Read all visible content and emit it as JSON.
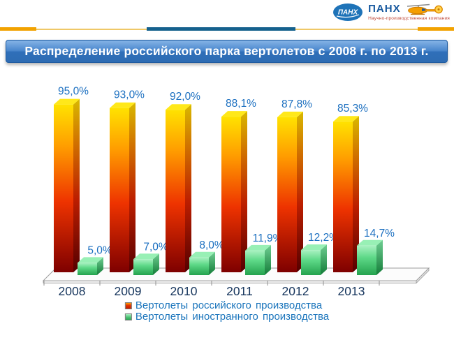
{
  "header": {
    "logo": {
      "badge_text": "ПАНХ",
      "company_name": "ПАНХ",
      "tagline": "Научно-производственная компания",
      "icons": [
        "logo-badge-icon",
        "helicopter-icon"
      ]
    }
  },
  "title_banner": {
    "text": "Распределение российского парка вертолетов с 2008 г. по 2013 г."
  },
  "chart_data": {
    "type": "bar",
    "style": "3d-column-pairs",
    "title": "Распределение российского парка вертолетов с 2008 г. по 2013 г.",
    "categories": [
      "2008",
      "2009",
      "2010",
      "2011",
      "2012",
      "2013"
    ],
    "series": [
      {
        "name": "Вертолеты российского производства",
        "color": "#D93000",
        "values": [
          95.0,
          93.0,
          92.0,
          88.1,
          87.8,
          85.3
        ],
        "labels": [
          "95,0%",
          "93,0%",
          "92,0%",
          "88,1%",
          "87,8%",
          "85,3%"
        ]
      },
      {
        "name": "Вертолеты иностранного производства",
        "color": "#3FBF6B",
        "values": [
          5.0,
          7.0,
          8.0,
          11.9,
          12.2,
          14.7
        ],
        "labels": [
          "5,0%",
          "7,0%",
          "8,0%",
          "11,9%",
          "12,2%",
          "14,7%"
        ]
      }
    ],
    "ylim": [
      0,
      100
    ],
    "grid": false,
    "value_axis_visible": false,
    "legend_position": "bottom",
    "value_label_color": "#1B6FC0",
    "category_label_color": "#17365D"
  },
  "colors": {
    "accent_orange": "#F2A200",
    "divider_blue": "#15618D",
    "divider_gold": "#EFC867",
    "legend_text": "#1B75BC",
    "title_bar_top": "#85B3E6",
    "title_bar_bottom": "#2E6CB3"
  }
}
